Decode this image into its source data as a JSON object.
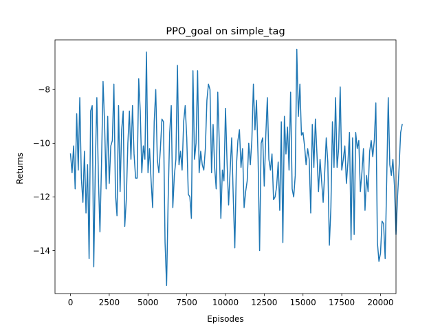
{
  "chart_data": {
    "type": "line",
    "title": "PPO_goal on simple_tag",
    "xlabel": "Episodes",
    "ylabel": "Returns",
    "xlim": [
      -1000,
      21000
    ],
    "ylim": [
      -15.6,
      -6.15
    ],
    "xticks": [
      0,
      2500,
      5000,
      7500,
      10000,
      12500,
      15000,
      17500,
      20000
    ],
    "xtick_labels": [
      "0",
      "2500",
      "5000",
      "7500",
      "10000",
      "12500",
      "15000",
      "17500",
      "20000"
    ],
    "yticks": [
      -14,
      -12,
      -10,
      -8
    ],
    "ytick_labels": [
      "−14",
      "−12",
      "−10",
      "−8"
    ],
    "grid": false,
    "series": [
      {
        "color": "#1f77b4",
        "x_start": 0,
        "x_step": 100,
        "values": [
          -10.4,
          -11.1,
          -10.1,
          -11.7,
          -8.9,
          -11.0,
          -8.3,
          -11.3,
          -12.2,
          -10.3,
          -12.6,
          -10.8,
          -14.3,
          -8.8,
          -8.6,
          -14.6,
          -10.9,
          -8.3,
          -11.3,
          -13.3,
          -10.8,
          -7.7,
          -9.3,
          -11.7,
          -9.0,
          -11.5,
          -10.1,
          -9.9,
          -7.8,
          -11.9,
          -12.7,
          -8.6,
          -11.8,
          -9.5,
          -8.8,
          -13.1,
          -12.1,
          -10.0,
          -8.8,
          -10.6,
          -8.6,
          -10.4,
          -11.3,
          -11.3,
          -7.6,
          -8.8,
          -11.1,
          -10.1,
          -10.6,
          -6.6,
          -11.1,
          -10.2,
          -11.4,
          -12.4,
          -9.2,
          -8.0,
          -10.6,
          -11.1,
          -10.2,
          -9.1,
          -9.2,
          -13.7,
          -15.3,
          -12.1,
          -9.6,
          -8.6,
          -12.4,
          -11.2,
          -10.6,
          -7.1,
          -10.8,
          -10.3,
          -11.0,
          -9.2,
          -8.6,
          -9.8,
          -11.9,
          -12.0,
          -12.8,
          -7.3,
          -10.6,
          -10.0,
          -7.3,
          -11.1,
          -10.3,
          -10.8,
          -11.0,
          -10.2,
          -8.4,
          -7.8,
          -8.0,
          -11.1,
          -9.3,
          -10.9,
          -11.7,
          -8.1,
          -10.0,
          -12.8,
          -11.0,
          -11.4,
          -8.7,
          -10.7,
          -12.3,
          -11.0,
          -9.8,
          -12.0,
          -13.9,
          -10.9,
          -9.9,
          -9.5,
          -10.9,
          -10.2,
          -12.4,
          -11.8,
          -11.4,
          -10.0,
          -10.8,
          -9.9,
          -7.8,
          -9.5,
          -8.4,
          -10.5,
          -14.0,
          -10.0,
          -9.8,
          -11.6,
          -9.7,
          -8.3,
          -10.6,
          -11.0,
          -10.4,
          -12.1,
          -12.0,
          -11.6,
          -10.7,
          -12.5,
          -9.2,
          -13.7,
          -9.0,
          -10.4,
          -9.4,
          -11.0,
          -8.1,
          -11.7,
          -12.0,
          -11.2,
          -6.5,
          -9.0,
          -7.8,
          -9.7,
          -9.6,
          -10.1,
          -10.8,
          -10.2,
          -10.6,
          -12.6,
          -9.3,
          -10.9,
          -9.1,
          -10.4,
          -11.8,
          -10.6,
          -11.4,
          -12.2,
          -11.1,
          -9.8,
          -10.7,
          -13.8,
          -12.4,
          -9.2,
          -10.9,
          -8.3,
          -10.9,
          -10.2,
          -7.9,
          -11.0,
          -10.6,
          -10.1,
          -11.5,
          -10.7,
          -9.6,
          -13.6,
          -9.8,
          -13.4,
          -9.6,
          -10.2,
          -9.9,
          -11.8,
          -11.1,
          -10.2,
          -12.5,
          -11.2,
          -11.8,
          -10.3,
          -9.9,
          -10.5,
          -9.9,
          -8.5,
          -13.7,
          -14.4,
          -14.1,
          -12.9,
          -13.0,
          -14.3,
          -11.4,
          -8.3,
          -10.8,
          -11.2,
          -10.6,
          -11.6,
          -13.4,
          -12.0,
          -10.9,
          -9.6,
          -9.3
        ]
      }
    ]
  }
}
